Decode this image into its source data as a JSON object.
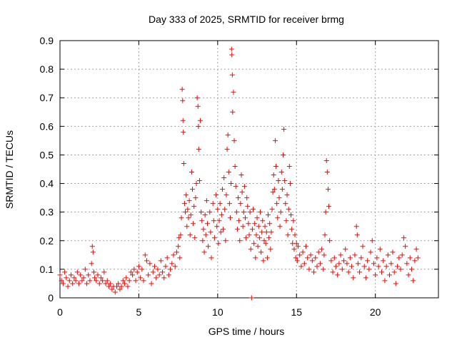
{
  "chart_data": {
    "type": "scatter",
    "title": "Day 333 of 2025, SRMTID for receiver brmg",
    "xlabel": "GPS time / hours",
    "ylabel": "SRMTID / TECUs",
    "xlim": [
      0,
      24
    ],
    "ylim": [
      0,
      0.9
    ],
    "xticks": [
      0,
      5,
      10,
      15,
      20
    ],
    "xtick_labels": [
      "0",
      "5",
      "10",
      "15",
      "20"
    ],
    "yticks": [
      0,
      0.1,
      0.2,
      0.3,
      0.4,
      0.5,
      0.6,
      0.7,
      0.8,
      0.9
    ],
    "ytick_labels": [
      "0",
      "0.1",
      "0.2",
      "0.3",
      "0.4",
      "0.5",
      "0.6",
      "0.7",
      "0.8",
      "0.9"
    ],
    "grid": true,
    "marker": "+",
    "color": "#ff0000",
    "series": [
      {
        "name": "SRMTID",
        "points": [
          [
            0.0,
            0.08
          ],
          [
            0.1,
            0.06
          ],
          [
            0.2,
            0.05
          ],
          [
            0.3,
            0.09
          ],
          [
            0.4,
            0.07
          ],
          [
            0.5,
            0.04
          ],
          [
            0.6,
            0.06
          ],
          [
            0.7,
            0.08
          ],
          [
            0.8,
            0.05
          ],
          [
            0.9,
            0.07
          ],
          [
            1.0,
            0.06
          ],
          [
            1.1,
            0.09
          ],
          [
            1.2,
            0.05
          ],
          [
            1.3,
            0.08
          ],
          [
            1.4,
            0.06
          ],
          [
            1.5,
            0.07
          ],
          [
            1.6,
            0.1
          ],
          [
            1.7,
            0.05
          ],
          [
            1.8,
            0.08
          ],
          [
            1.9,
            0.06
          ],
          [
            2.0,
            0.12
          ],
          [
            2.05,
            0.18
          ],
          [
            2.1,
            0.16
          ],
          [
            2.15,
            0.09
          ],
          [
            2.2,
            0.07
          ],
          [
            2.3,
            0.06
          ],
          [
            2.4,
            0.08
          ],
          [
            2.5,
            0.05
          ],
          [
            2.6,
            0.07
          ],
          [
            2.7,
            0.06
          ],
          [
            2.8,
            0.09
          ],
          [
            2.9,
            0.05
          ],
          [
            3.0,
            0.06
          ],
          [
            3.1,
            0.04
          ],
          [
            3.2,
            0.05
          ],
          [
            3.3,
            0.03
          ],
          [
            3.4,
            0.04
          ],
          [
            3.5,
            0.02
          ],
          [
            3.6,
            0.04
          ],
          [
            3.7,
            0.05
          ],
          [
            3.8,
            0.03
          ],
          [
            3.9,
            0.04
          ],
          [
            4.0,
            0.06
          ],
          [
            4.1,
            0.05
          ],
          [
            4.2,
            0.07
          ],
          [
            4.3,
            0.04
          ],
          [
            4.4,
            0.06
          ],
          [
            4.5,
            0.09
          ],
          [
            4.6,
            0.08
          ],
          [
            4.7,
            0.1
          ],
          [
            4.8,
            0.06
          ],
          [
            4.9,
            0.09
          ],
          [
            5.0,
            0.11
          ],
          [
            5.1,
            0.07
          ],
          [
            5.2,
            0.1
          ],
          [
            5.3,
            0.06
          ],
          [
            5.4,
            0.15
          ],
          [
            5.5,
            0.13
          ],
          [
            5.6,
            0.08
          ],
          [
            5.7,
            0.12
          ],
          [
            5.8,
            0.05
          ],
          [
            5.9,
            0.09
          ],
          [
            6.0,
            0.11
          ],
          [
            6.1,
            0.07
          ],
          [
            6.2,
            0.1
          ],
          [
            6.3,
            0.08
          ],
          [
            6.4,
            0.13
          ],
          [
            6.5,
            0.09
          ],
          [
            6.6,
            0.07
          ],
          [
            6.7,
            0.11
          ],
          [
            6.8,
            0.14
          ],
          [
            6.9,
            0.08
          ],
          [
            7.0,
            0.1
          ],
          [
            7.1,
            0.12
          ],
          [
            7.2,
            0.15
          ],
          [
            7.3,
            0.11
          ],
          [
            7.4,
            0.16
          ],
          [
            7.5,
            0.18
          ],
          [
            7.55,
            0.21
          ],
          [
            7.6,
            0.14
          ],
          [
            7.65,
            0.22
          ],
          [
            7.7,
            0.28
          ],
          [
            7.75,
            0.73
          ],
          [
            7.78,
            0.69
          ],
          [
            7.8,
            0.62
          ],
          [
            7.82,
            0.58
          ],
          [
            7.85,
            0.47
          ],
          [
            7.9,
            0.33
          ],
          [
            7.95,
            0.3
          ],
          [
            8.0,
            0.36
          ],
          [
            8.05,
            0.25
          ],
          [
            8.1,
            0.31
          ],
          [
            8.15,
            0.28
          ],
          [
            8.2,
            0.34
          ],
          [
            8.25,
            0.22
          ],
          [
            8.3,
            0.29
          ],
          [
            8.35,
            0.44
          ],
          [
            8.4,
            0.38
          ],
          [
            8.45,
            0.26
          ],
          [
            8.5,
            0.32
          ],
          [
            8.55,
            0.21
          ],
          [
            8.6,
            0.35
          ],
          [
            8.65,
            0.4
          ],
          [
            8.7,
            0.7
          ],
          [
            8.75,
            0.67
          ],
          [
            8.78,
            0.6
          ],
          [
            8.8,
            0.52
          ],
          [
            8.85,
            0.41
          ],
          [
            8.9,
            0.62
          ],
          [
            8.95,
            0.3
          ],
          [
            9.0,
            0.27
          ],
          [
            9.05,
            0.2
          ],
          [
            9.1,
            0.24
          ],
          [
            9.15,
            0.16
          ],
          [
            9.2,
            0.29
          ],
          [
            9.25,
            0.22
          ],
          [
            9.3,
            0.34
          ],
          [
            9.35,
            0.26
          ],
          [
            9.4,
            0.18
          ],
          [
            9.5,
            0.3
          ],
          [
            9.55,
            0.23
          ],
          [
            9.6,
            0.14
          ],
          [
            9.7,
            0.33
          ],
          [
            9.75,
            0.27
          ],
          [
            9.8,
            0.21
          ],
          [
            9.9,
            0.36
          ],
          [
            9.95,
            0.25
          ],
          [
            10.0,
            0.31
          ],
          [
            10.05,
            0.19
          ],
          [
            10.1,
            0.27
          ],
          [
            10.15,
            0.33
          ],
          [
            10.2,
            0.23
          ],
          [
            10.25,
            0.29
          ],
          [
            10.3,
            0.38
          ],
          [
            10.35,
            0.24
          ],
          [
            10.4,
            0.42
          ],
          [
            10.45,
            0.31
          ],
          [
            10.5,
            0.2
          ],
          [
            10.55,
            0.36
          ],
          [
            10.6,
            0.52
          ],
          [
            10.65,
            0.57
          ],
          [
            10.7,
            0.44
          ],
          [
            10.75,
            0.33
          ],
          [
            10.8,
            0.28
          ],
          [
            10.85,
            0.4
          ],
          [
            10.88,
            0.87
          ],
          [
            10.9,
            0.85
          ],
          [
            10.93,
            0.78
          ],
          [
            10.95,
            0.65
          ],
          [
            11.0,
            0.72
          ],
          [
            11.05,
            0.55
          ],
          [
            11.1,
            0.46
          ],
          [
            11.15,
            0.39
          ],
          [
            11.2,
            0.3
          ],
          [
            11.25,
            0.24
          ],
          [
            11.3,
            0.35
          ],
          [
            11.35,
            0.27
          ],
          [
            11.4,
            0.2
          ],
          [
            11.45,
            0.33
          ],
          [
            11.5,
            0.43
          ],
          [
            11.55,
            0.37
          ],
          [
            11.6,
            0.25
          ],
          [
            11.65,
            0.3
          ],
          [
            11.7,
            0.39
          ],
          [
            11.75,
            0.28
          ],
          [
            11.8,
            0.21
          ],
          [
            11.85,
            0.35
          ],
          [
            11.9,
            0.32
          ],
          [
            11.95,
            0.26
          ],
          [
            12.0,
            0.22
          ],
          [
            12.05,
            0.3
          ],
          [
            12.1,
            0.17
          ],
          [
            12.15,
            0.0
          ],
          [
            12.2,
            0.24
          ],
          [
            12.25,
            0.31
          ],
          [
            12.3,
            0.19
          ],
          [
            12.35,
            0.26
          ],
          [
            12.4,
            0.14
          ],
          [
            12.45,
            0.22
          ],
          [
            12.5,
            0.28
          ],
          [
            12.55,
            0.18
          ],
          [
            12.6,
            0.25
          ],
          [
            12.65,
            0.21
          ],
          [
            12.7,
            0.3
          ],
          [
            12.75,
            0.16
          ],
          [
            12.8,
            0.23
          ],
          [
            12.85,
            0.27
          ],
          [
            12.9,
            0.13
          ],
          [
            12.95,
            0.2
          ],
          [
            13.0,
            0.25
          ],
          [
            13.05,
            0.19
          ],
          [
            13.1,
            0.23
          ],
          [
            13.15,
            0.14
          ],
          [
            13.2,
            0.29
          ],
          [
            13.25,
            0.21
          ],
          [
            13.3,
            0.26
          ],
          [
            13.35,
            0.17
          ],
          [
            13.4,
            0.23
          ],
          [
            13.45,
            0.31
          ],
          [
            13.5,
            0.37
          ],
          [
            13.55,
            0.43
          ],
          [
            13.6,
            0.38
          ],
          [
            13.65,
            0.55
          ],
          [
            13.7,
            0.46
          ],
          [
            13.75,
            0.33
          ],
          [
            13.8,
            0.28
          ],
          [
            13.85,
            0.41
          ],
          [
            13.9,
            0.35
          ],
          [
            13.95,
            0.25
          ],
          [
            14.0,
            0.3
          ],
          [
            14.05,
            0.44
          ],
          [
            14.1,
            0.38
          ],
          [
            14.15,
            0.5
          ],
          [
            14.2,
            0.59
          ],
          [
            14.25,
            0.41
          ],
          [
            14.3,
            0.33
          ],
          [
            14.35,
            0.27
          ],
          [
            14.4,
            0.36
          ],
          [
            14.45,
            0.22
          ],
          [
            14.5,
            0.31
          ],
          [
            14.55,
            0.46
          ],
          [
            14.6,
            0.4
          ],
          [
            14.65,
            0.29
          ],
          [
            14.7,
            0.24
          ],
          [
            14.75,
            0.19
          ],
          [
            14.8,
            0.27
          ],
          [
            14.85,
            0.17
          ],
          [
            14.9,
            0.22
          ],
          [
            14.95,
            0.14
          ],
          [
            15.0,
            0.19
          ],
          [
            15.05,
            0.13
          ],
          [
            15.1,
            0.18
          ],
          [
            15.2,
            0.15
          ],
          [
            15.3,
            0.11
          ],
          [
            15.4,
            0.16
          ],
          [
            15.5,
            0.12
          ],
          [
            15.6,
            0.18
          ],
          [
            15.7,
            0.14
          ],
          [
            15.8,
            0.1
          ],
          [
            15.9,
            0.15
          ],
          [
            16.0,
            0.13
          ],
          [
            16.1,
            0.09
          ],
          [
            16.2,
            0.14
          ],
          [
            16.3,
            0.11
          ],
          [
            16.4,
            0.16
          ],
          [
            16.5,
            0.12
          ],
          [
            16.6,
            0.17
          ],
          [
            16.7,
            0.1
          ],
          [
            16.75,
            0.15
          ],
          [
            16.8,
            0.22
          ],
          [
            16.85,
            0.3
          ],
          [
            16.9,
            0.48
          ],
          [
            16.95,
            0.44
          ],
          [
            17.0,
            0.38
          ],
          [
            17.05,
            0.32
          ],
          [
            17.1,
            0.2
          ],
          [
            17.2,
            0.13
          ],
          [
            17.3,
            0.09
          ],
          [
            17.4,
            0.14
          ],
          [
            17.5,
            0.11
          ],
          [
            17.6,
            0.08
          ],
          [
            17.7,
            0.12
          ],
          [
            17.8,
            0.15
          ],
          [
            17.9,
            0.1
          ],
          [
            18.0,
            0.13
          ],
          [
            18.1,
            0.17
          ],
          [
            18.2,
            0.12
          ],
          [
            18.3,
            0.09
          ],
          [
            18.4,
            0.14
          ],
          [
            18.5,
            0.11
          ],
          [
            18.6,
            0.07
          ],
          [
            18.7,
            0.15
          ],
          [
            18.8,
            0.25
          ],
          [
            18.85,
            0.22
          ],
          [
            18.9,
            0.12
          ],
          [
            19.0,
            0.09
          ],
          [
            19.1,
            0.14
          ],
          [
            19.2,
            0.18
          ],
          [
            19.3,
            0.11
          ],
          [
            19.4,
            0.07
          ],
          [
            19.5,
            0.13
          ],
          [
            19.6,
            0.1
          ],
          [
            19.7,
            0.16
          ],
          [
            19.8,
            0.2
          ],
          [
            19.9,
            0.12
          ],
          [
            20.0,
            0.08
          ],
          [
            20.1,
            0.14
          ],
          [
            20.2,
            0.11
          ],
          [
            20.3,
            0.17
          ],
          [
            20.4,
            0.09
          ],
          [
            20.5,
            0.13
          ],
          [
            20.6,
            0.06
          ],
          [
            20.7,
            0.11
          ],
          [
            20.8,
            0.15
          ],
          [
            20.9,
            0.08
          ],
          [
            21.0,
            0.12
          ],
          [
            21.1,
            0.16
          ],
          [
            21.2,
            0.09
          ],
          [
            21.3,
            0.05
          ],
          [
            21.4,
            0.11
          ],
          [
            21.5,
            0.14
          ],
          [
            21.6,
            0.1
          ],
          [
            21.7,
            0.15
          ],
          [
            21.8,
            0.21
          ],
          [
            21.9,
            0.18
          ],
          [
            22.0,
            0.12
          ],
          [
            22.1,
            0.08
          ],
          [
            22.2,
            0.14
          ],
          [
            22.3,
            0.1
          ],
          [
            22.4,
            0.06
          ],
          [
            22.5,
            0.13
          ],
          [
            22.6,
            0.17
          ],
          [
            22.7,
            0.14
          ]
        ]
      }
    ]
  }
}
